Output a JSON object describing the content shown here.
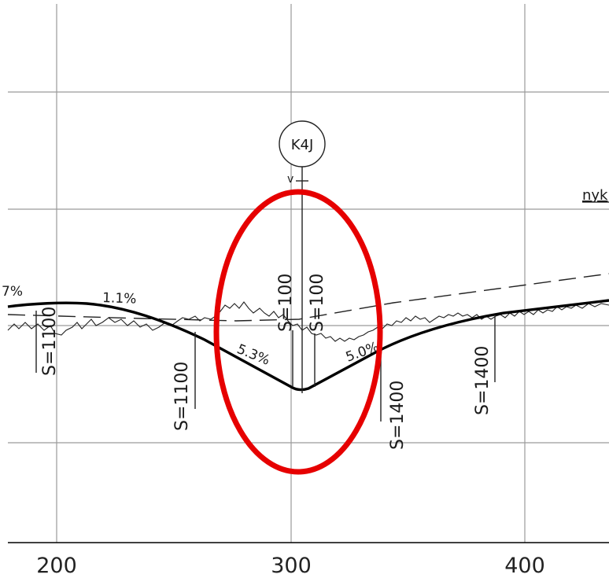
{
  "axis": {
    "x_ticks": [
      "200",
      "300",
      "400"
    ]
  },
  "station_marker": {
    "label": "K4J",
    "sub_label": "v"
  },
  "grades": {
    "left_partial": "7%",
    "left_flat": "1.1%",
    "left_down": "5.3%",
    "right_up": "5.0%"
  },
  "curves": {
    "s1": "S=1100",
    "s2": "S=1100",
    "s3": "S=100",
    "s4": "S=100",
    "s5": "S=1400",
    "s6": "S=1400"
  },
  "top_right_label": "nyk",
  "highlight": {
    "shape": "ellipse",
    "color": "#e60000"
  },
  "colors": {
    "grid": "#9a9a9a",
    "design_line": "#000000",
    "ground_line": "#222222"
  }
}
